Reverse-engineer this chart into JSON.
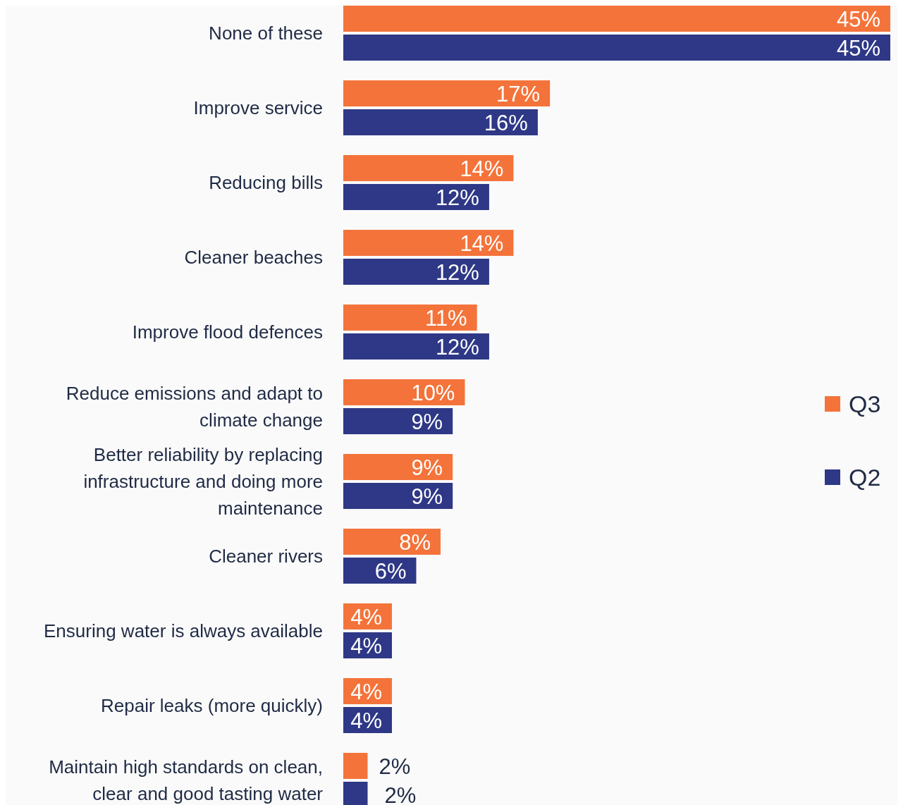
{
  "chart_data": {
    "type": "bar",
    "orientation": "horizontal",
    "legend": "right",
    "categories": [
      "None of these",
      "Improve service",
      "Reducing bills",
      "Cleaner beaches",
      "Improve flood defences",
      "Reduce emissions and adapt to climate change",
      "Better reliability by replacing infrastructure and doing more maintenance",
      "Cleaner rivers",
      "Ensuring water is always available",
      "Repair leaks (more quickly)",
      "Maintain high standards on clean, clear and good tasting water"
    ],
    "series": [
      {
        "name": "Q3",
        "color": "#f4733a",
        "values": [
          45,
          17,
          14,
          14,
          11,
          10,
          9,
          8,
          4,
          4,
          2
        ],
        "value_labels": [
          "45%",
          "17%",
          "14%",
          "14%",
          "11%",
          "10%",
          "9%",
          "8%",
          "4%",
          "4%",
          "2%"
        ]
      },
      {
        "name": "Q2",
        "color": "#2e3886",
        "values": [
          45,
          16,
          12,
          12,
          12,
          9,
          9,
          6,
          4,
          4,
          2
        ],
        "value_labels": [
          "45%",
          "16%",
          "12%",
          "12%",
          "12%",
          "9%",
          "9%",
          "6%",
          "4%",
          "4%",
          "2%"
        ]
      }
    ]
  }
}
